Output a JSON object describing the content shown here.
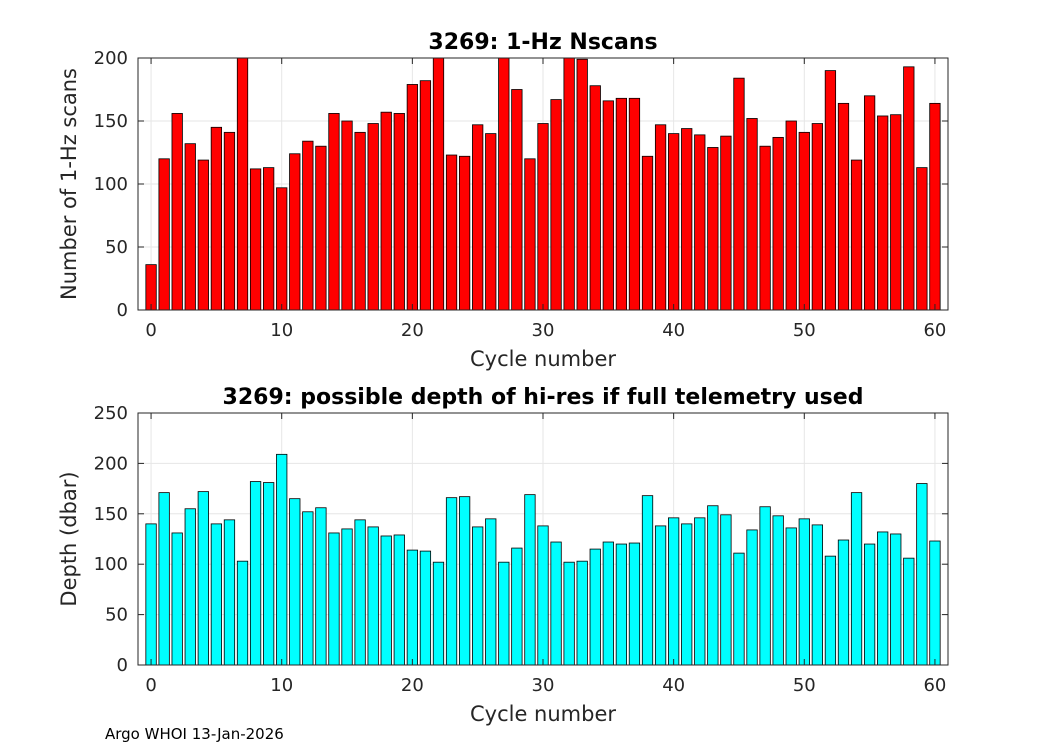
{
  "footer": "Argo WHOI 13-Jan-2026",
  "chart_data": [
    {
      "type": "bar",
      "title": "3269: 1-Hz Nscans",
      "xlabel": "Cycle number",
      "ylabel": "Number of 1-Hz scans",
      "xlim": [
        -1,
        61
      ],
      "ylim": [
        0,
        200
      ],
      "xticks": [
        0,
        10,
        20,
        30,
        40,
        50,
        60
      ],
      "yticks": [
        0,
        50,
        100,
        150,
        200
      ],
      "grid": true,
      "color": "#ff0000",
      "x": [
        0,
        1,
        2,
        3,
        4,
        5,
        6,
        7,
        8,
        9,
        10,
        11,
        12,
        13,
        14,
        15,
        16,
        17,
        18,
        19,
        20,
        21,
        22,
        23,
        24,
        25,
        26,
        27,
        28,
        29,
        30,
        31,
        32,
        33,
        34,
        35,
        36,
        37,
        38,
        39,
        40,
        41,
        42,
        43,
        44,
        45,
        46,
        47,
        48,
        49,
        50,
        51,
        52,
        53,
        54,
        55,
        56,
        57,
        58,
        59,
        60
      ],
      "values": [
        36,
        120,
        156,
        132,
        119,
        145,
        141,
        200,
        112,
        113,
        97,
        124,
        134,
        130,
        156,
        150,
        141,
        148,
        157,
        156,
        179,
        182,
        200,
        123,
        122,
        147,
        140,
        200,
        175,
        120,
        148,
        167,
        200,
        199,
        178,
        166,
        168,
        168,
        122,
        147,
        140,
        144,
        139,
        129,
        138,
        184,
        152,
        130,
        137,
        150,
        141,
        148,
        190,
        164,
        119,
        170,
        154,
        155,
        193,
        113,
        164
      ]
    },
    {
      "type": "bar",
      "title": "3269: possible depth of hi-res if full telemetry used",
      "xlabel": "Cycle number",
      "ylabel": "Depth (dbar)",
      "xlim": [
        -1,
        61
      ],
      "ylim": [
        0,
        250
      ],
      "xticks": [
        0,
        10,
        20,
        30,
        40,
        50,
        60
      ],
      "yticks": [
        0,
        50,
        100,
        150,
        200,
        250
      ],
      "grid": true,
      "color": "#00ffff",
      "x": [
        0,
        1,
        2,
        3,
        4,
        5,
        6,
        7,
        8,
        9,
        10,
        11,
        12,
        13,
        14,
        15,
        16,
        17,
        18,
        19,
        20,
        21,
        22,
        23,
        24,
        25,
        26,
        27,
        28,
        29,
        30,
        31,
        32,
        33,
        34,
        35,
        36,
        37,
        38,
        39,
        40,
        41,
        42,
        43,
        44,
        45,
        46,
        47,
        48,
        49,
        50,
        51,
        52,
        53,
        54,
        55,
        56,
        57,
        58,
        59,
        60
      ],
      "values": [
        140,
        171,
        131,
        155,
        172,
        140,
        144,
        103,
        182,
        181,
        209,
        165,
        152,
        156,
        131,
        135,
        144,
        137,
        128,
        129,
        114,
        113,
        102,
        166,
        167,
        137,
        145,
        102,
        116,
        169,
        138,
        122,
        102,
        103,
        115,
        122,
        120,
        121,
        168,
        138,
        146,
        140,
        146,
        158,
        149,
        111,
        134,
        157,
        148,
        136,
        145,
        139,
        108,
        124,
        171,
        120,
        132,
        130,
        106,
        180,
        123
      ]
    }
  ]
}
